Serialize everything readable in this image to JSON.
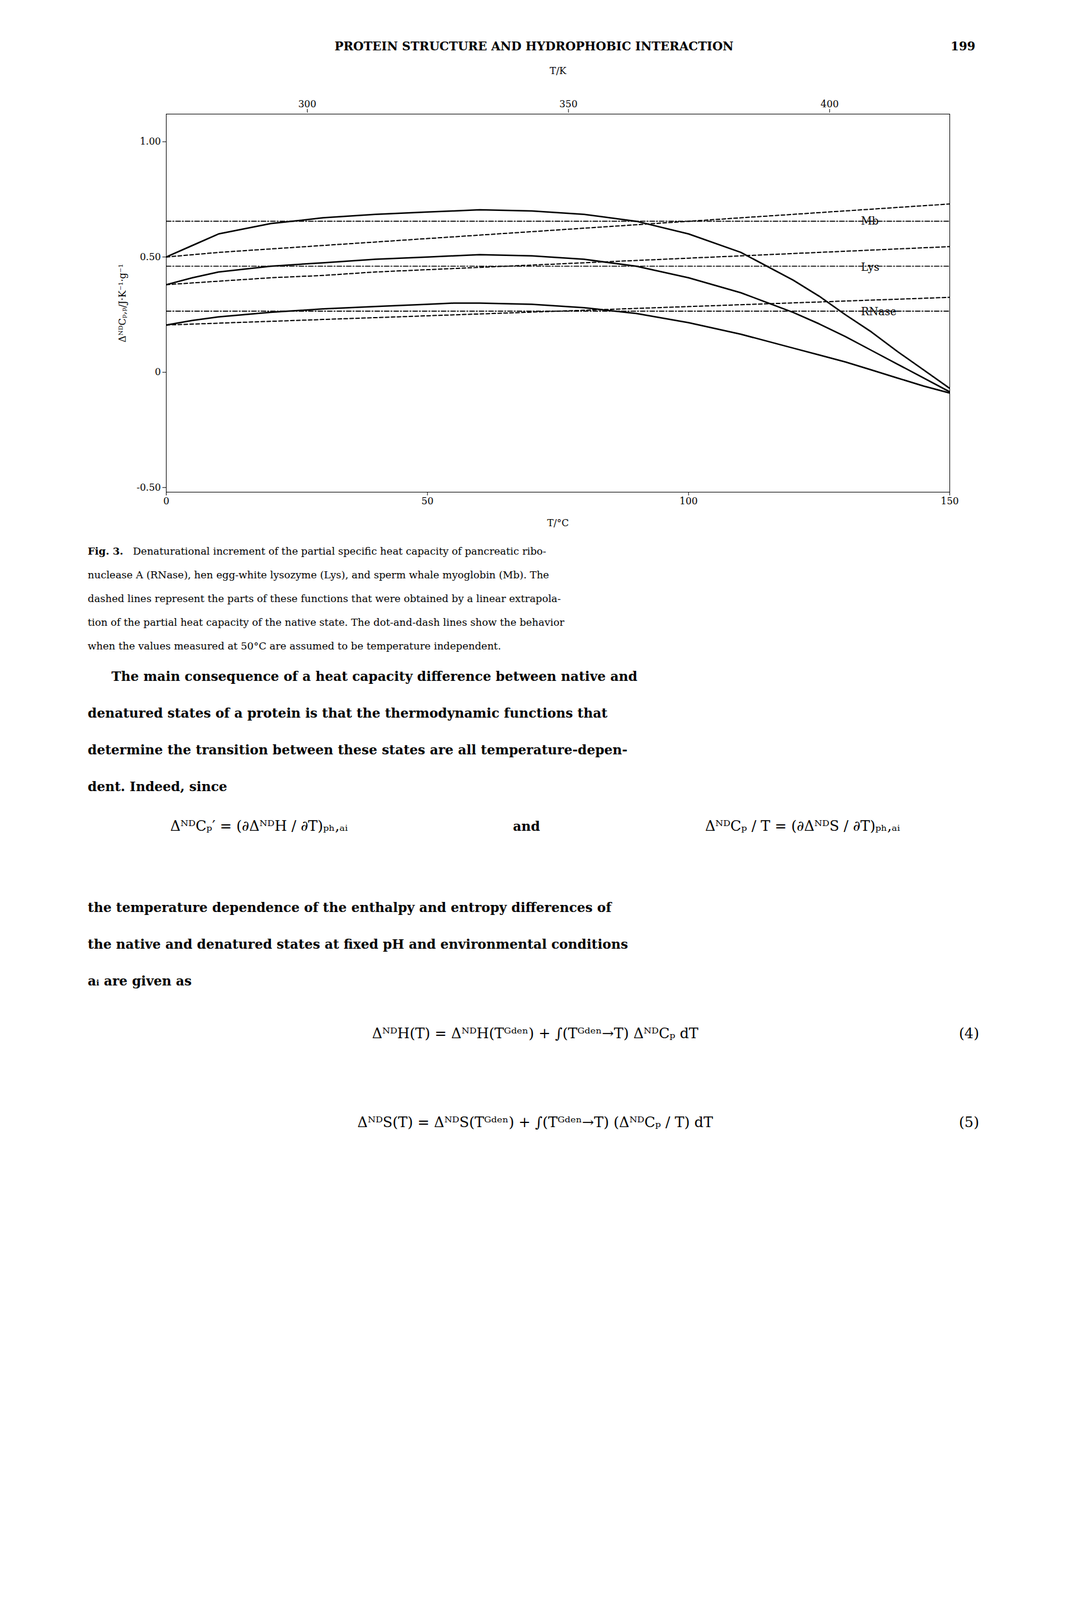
{
  "chart_data": {
    "type": "line",
    "title": "PROTEIN STRUCTURE AND HYDROPHOBIC INTERACTION",
    "page_number": "199",
    "xlabel": "T/°C",
    "ylabel": "ΔᴺᴰCₚ,ₚ/J·K⁻¹·g⁻¹",
    "x2label": "T/K",
    "xlim": [
      0,
      150
    ],
    "xticks": [
      0,
      50,
      100,
      150
    ],
    "x2lim": [
      273,
      423
    ],
    "x2ticks": [
      300,
      350,
      400
    ],
    "ylim": [
      -0.52,
      1.12
    ],
    "yticks": [
      {
        "value": -0.5,
        "label": "-0.50"
      },
      0,
      {
        "value": 0.5,
        "label": "0.50"
      },
      {
        "value": 1.0,
        "label": "1.00"
      }
    ],
    "grid": false,
    "series": [
      {
        "color": "#000000",
        "line_style": "solid",
        "x": [
          0,
          5,
          10,
          20,
          30,
          40,
          50,
          55,
          60,
          70,
          80,
          90,
          100,
          110,
          120,
          125,
          130,
          135,
          140,
          145,
          150
        ],
        "values": [
          0.5,
          0.55,
          0.6,
          0.645,
          0.67,
          0.685,
          0.695,
          0.7,
          0.705,
          0.7,
          0.685,
          0.655,
          0.6,
          0.52,
          0.4,
          0.33,
          0.25,
          0.175,
          0.09,
          0.01,
          -0.07
        ]
      },
      {
        "color": "#000000",
        "line_style": "dashed",
        "x": [
          0,
          10,
          20,
          30,
          40,
          50,
          60,
          70,
          80,
          90,
          100,
          110,
          120,
          130,
          140,
          150
        ],
        "values": [
          0.5,
          0.52,
          0.535,
          0.55,
          0.565,
          0.58,
          0.595,
          0.61,
          0.625,
          0.64,
          0.655,
          0.67,
          0.685,
          0.7,
          0.715,
          0.73
        ]
      },
      {
        "color": "#000000",
        "line_style": "dashdot",
        "x": [
          0,
          150
        ],
        "values": [
          0.655,
          0.655
        ]
      },
      {
        "color": "#000000",
        "line_style": "solid",
        "x": [
          0,
          5,
          10,
          20,
          30,
          40,
          50,
          55,
          60,
          70,
          80,
          90,
          100,
          110,
          120,
          125,
          130,
          135,
          140,
          145,
          150
        ],
        "values": [
          0.38,
          0.41,
          0.435,
          0.46,
          0.475,
          0.49,
          0.5,
          0.505,
          0.51,
          0.505,
          0.49,
          0.46,
          0.41,
          0.345,
          0.26,
          0.21,
          0.155,
          0.095,
          0.035,
          -0.025,
          -0.085
        ]
      },
      {
        "color": "#000000",
        "line_style": "dashed",
        "x": [
          0,
          10,
          20,
          30,
          40,
          50,
          60,
          70,
          80,
          90,
          100,
          110,
          120,
          130,
          140,
          150
        ],
        "values": [
          0.38,
          0.395,
          0.41,
          0.42,
          0.435,
          0.445,
          0.455,
          0.465,
          0.475,
          0.485,
          0.495,
          0.505,
          0.515,
          0.525,
          0.535,
          0.545
        ]
      },
      {
        "color": "#000000",
        "line_style": "dashdot",
        "x": [
          0,
          150
        ],
        "values": [
          0.46,
          0.46
        ]
      },
      {
        "color": "#000000",
        "line_style": "solid",
        "x": [
          0,
          5,
          10,
          20,
          30,
          40,
          50,
          55,
          60,
          70,
          80,
          90,
          100,
          110,
          120,
          125,
          130,
          135,
          140,
          145,
          150
        ],
        "values": [
          0.205,
          0.225,
          0.24,
          0.26,
          0.275,
          0.285,
          0.295,
          0.3,
          0.3,
          0.295,
          0.28,
          0.255,
          0.215,
          0.165,
          0.105,
          0.075,
          0.045,
          0.01,
          -0.025,
          -0.06,
          -0.09
        ]
      },
      {
        "color": "#000000",
        "line_style": "dashed",
        "x": [
          0,
          10,
          20,
          30,
          40,
          50,
          60,
          70,
          80,
          90,
          100,
          110,
          120,
          130,
          140,
          150
        ],
        "values": [
          0.205,
          0.213,
          0.221,
          0.229,
          0.237,
          0.245,
          0.253,
          0.261,
          0.269,
          0.277,
          0.285,
          0.293,
          0.301,
          0.309,
          0.317,
          0.325
        ]
      },
      {
        "color": "#000000",
        "line_style": "dashdot",
        "x": [
          0,
          150
        ],
        "values": [
          0.265,
          0.265
        ]
      }
    ],
    "annotations": [
      {
        "text": "Mb",
        "x": 133,
        "y": 0.655
      },
      {
        "text": "Lys",
        "x": 133,
        "y": 0.455
      },
      {
        "text": "RNase",
        "x": 133,
        "y": 0.263
      }
    ],
    "caption_label": "Fig. 3.",
    "caption": [
      "Denaturational increment of the partial specific heat capacity of pancreatic ribo-",
      "nuclease A (RNase), hen egg-white lysozyme (Lys), and sperm whale myoglobin (Mb). The",
      "dashed lines represent the parts of these functions that were obtained by a linear extrapola-",
      "tion of the partial heat capacity of the native state. The dot-and-dash lines show the behavior",
      "when the values measured at 50°C are assumed to be temperature independent."
    ],
    "body_text": [
      "The main consequence of a heat capacity difference between native and",
      "denatured states of a protein is that the thermodynamic functions that",
      "determine the transition between these states are all temperature-depen-",
      "dent. Indeed, since"
    ],
    "inline_equations": [
      "ΔᴺᴰCₚ′ = (∂ΔᴺᴰH / ∂T)ₚₕ,ₐᵢ",
      "and",
      "ΔᴺᴰCₚ / T = (∂ΔᴺᴰS / ∂T)ₚₕ,ₐᵢ"
    ],
    "after_text": [
      "the temperature dependence of the enthalpy and entropy differences of",
      "the native and denatured states at fixed pH and environmental conditions",
      "aᵢ are given as"
    ],
    "numbered_equations": [
      {
        "equation": "ΔᴺᴰH(T) = ΔᴺᴰH(Tᴳᵈᵉⁿ) + ∫(Tᴳᵈᵉⁿ→T) ΔᴺᴰCₚ dT",
        "number": "(4)"
      },
      {
        "equation": "ΔᴺᴰS(T) = ΔᴺᴰS(Tᴳᵈᵉⁿ) + ∫(Tᴳᵈᵉⁿ→T) (ΔᴺᴰCₚ / T) dT",
        "number": "(5)"
      }
    ]
  }
}
